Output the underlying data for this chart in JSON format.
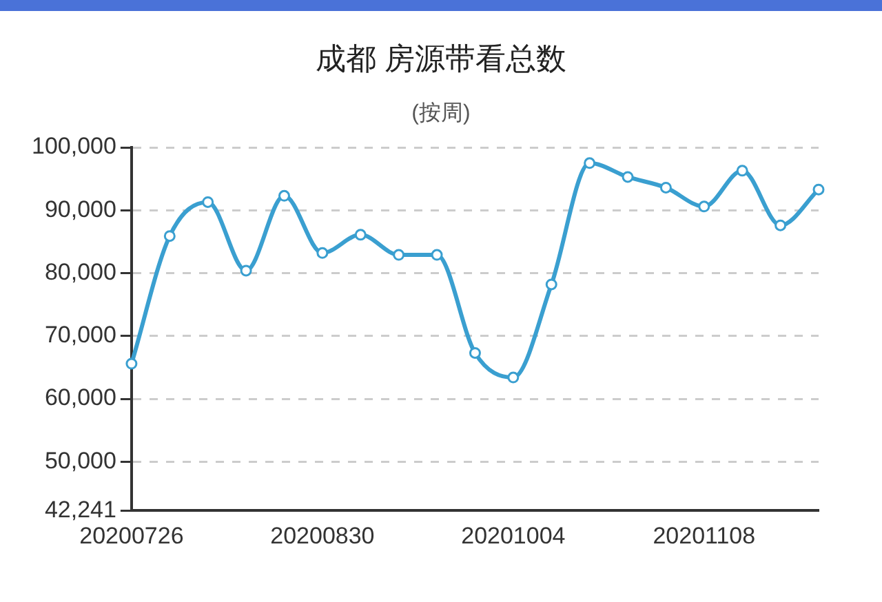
{
  "chart_data": {
    "type": "line",
    "title": "成都 房源带看总数",
    "subtitle": "(按周)",
    "categories": [
      "20200726",
      null,
      null,
      null,
      null,
      "20200830",
      null,
      null,
      null,
      null,
      "20201004",
      null,
      null,
      null,
      null,
      "20201108",
      null,
      null,
      null
    ],
    "series": [
      {
        "color": "#3a9fd0",
        "values": [
          65600,
          85900,
          91300,
          80400,
          92300,
          83200,
          86100,
          82900,
          82900,
          67300,
          63400,
          78200,
          97500,
          95300,
          93600,
          90600,
          96300,
          87600,
          93300
        ]
      }
    ],
    "ylim": [
      42241,
      100000
    ],
    "yticks": [
      {
        "value": 42241,
        "label": "42,241"
      },
      {
        "value": 50000,
        "label": "50,000"
      },
      {
        "value": 60000,
        "label": "60,000"
      },
      {
        "value": 70000,
        "label": "70,000"
      },
      {
        "value": 80000,
        "label": "80,000"
      },
      {
        "value": 90000,
        "label": "90,000"
      },
      {
        "value": 100000,
        "label": "100,000"
      }
    ],
    "grid": "y",
    "marker": "circle",
    "line_style": "solid",
    "legend": false
  }
}
